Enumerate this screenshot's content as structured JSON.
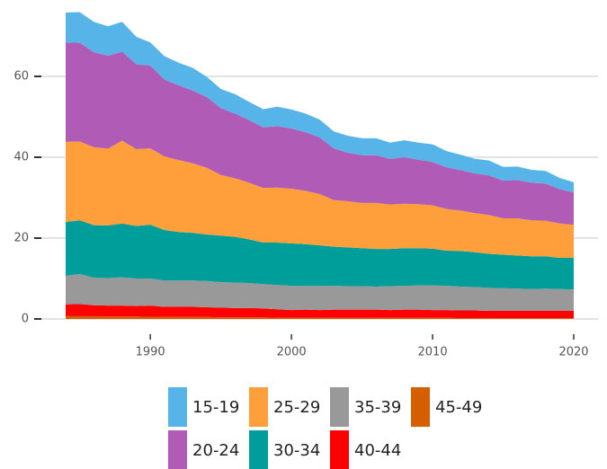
{
  "chart_data": {
    "type": "stacked-area",
    "x": [
      1984,
      1985,
      1986,
      1987,
      1988,
      1989,
      1990,
      1991,
      1992,
      1993,
      1994,
      1995,
      1996,
      1997,
      1998,
      1999,
      2000,
      2001,
      2002,
      2003,
      2004,
      2005,
      2006,
      2007,
      2008,
      2009,
      2010,
      2011,
      2012,
      2013,
      2014,
      2015,
      2016,
      2017,
      2018,
      2019,
      2020
    ],
    "xlim": [
      1984,
      2020
    ],
    "xticks": [
      1990,
      2000,
      2010,
      2020
    ],
    "ylim": [
      0,
      77
    ],
    "yticks": [
      0,
      20,
      40,
      60
    ],
    "grid": true,
    "series": [
      {
        "name": "15-19",
        "color": "#56b4e9",
        "values": [
          7.4,
          7.6,
          7.5,
          7.3,
          7.4,
          6.8,
          5.7,
          5.8,
          5.6,
          5.6,
          5.0,
          4.8,
          4.8,
          4.5,
          4.5,
          4.8,
          4.7,
          4.6,
          4.4,
          4.2,
          4.2,
          4.2,
          4.2,
          4.0,
          4.2,
          4.2,
          4.4,
          4.0,
          3.8,
          3.6,
          3.7,
          3.4,
          3.3,
          3.2,
          3.1,
          2.8,
          2.5
        ]
      },
      {
        "name": "20-24",
        "color": "#b05bb5",
        "values": [
          24.6,
          24.4,
          23.5,
          23.0,
          22.0,
          21.0,
          20.5,
          19.0,
          18.5,
          18.0,
          17.5,
          16.5,
          16.0,
          15.5,
          15.0,
          15.2,
          14.9,
          14.5,
          14.0,
          12.8,
          12.0,
          11.8,
          11.8,
          11.3,
          11.5,
          11.0,
          10.7,
          10.3,
          10.0,
          9.8,
          9.8,
          9.3,
          9.5,
          9.3,
          9.2,
          8.5,
          8.0
        ]
      },
      {
        "name": "25-29",
        "color": "#ff9f3b",
        "values": [
          19.8,
          19.5,
          19.3,
          19.0,
          20.5,
          19.0,
          18.9,
          18.2,
          17.8,
          17.2,
          16.5,
          15.0,
          14.5,
          14.0,
          13.5,
          13.6,
          13.5,
          13.2,
          12.7,
          11.5,
          11.4,
          11.2,
          11.4,
          11.0,
          11.0,
          10.9,
          10.7,
          10.3,
          10.0,
          9.7,
          9.6,
          9.0,
          9.2,
          8.9,
          8.8,
          8.5,
          8.2
        ]
      },
      {
        "name": "30-34",
        "color": "#009e9b",
        "values": [
          13.3,
          13.3,
          13.0,
          13.0,
          13.3,
          13.0,
          13.3,
          12.5,
          12.0,
          11.8,
          11.5,
          11.5,
          11.3,
          10.8,
          10.3,
          10.5,
          10.5,
          10.3,
          10.0,
          9.7,
          9.6,
          9.4,
          9.3,
          9.2,
          9.3,
          9.2,
          9.1,
          8.7,
          8.8,
          8.6,
          8.4,
          8.3,
          8.2,
          8.1,
          8.0,
          7.7,
          7.8
        ]
      },
      {
        "name": "35-39",
        "color": "#999999",
        "values": [
          7.1,
          7.4,
          6.8,
          6.8,
          7.0,
          6.8,
          6.7,
          6.5,
          6.5,
          6.5,
          6.5,
          6.3,
          6.3,
          6.2,
          6.0,
          6.0,
          6.0,
          5.9,
          6.0,
          5.9,
          5.8,
          5.8,
          5.7,
          5.9,
          5.9,
          6.0,
          6.1,
          6.0,
          5.9,
          5.8,
          5.7,
          5.6,
          5.5,
          5.4,
          5.5,
          5.4,
          5.3
        ]
      },
      {
        "name": "40-44",
        "color": "#ff0000",
        "values": [
          2.9,
          3.0,
          2.7,
          2.7,
          2.7,
          2.6,
          2.8,
          2.5,
          2.5,
          2.5,
          2.4,
          2.4,
          2.3,
          2.3,
          2.2,
          2.1,
          1.9,
          2.0,
          1.9,
          2.0,
          2.0,
          2.0,
          2.0,
          1.9,
          2.0,
          2.0,
          1.9,
          1.9,
          1.9,
          1.9,
          1.8,
          1.8,
          1.8,
          1.8,
          1.8,
          1.8,
          1.8
        ]
      },
      {
        "name": "45-49",
        "color": "#d55e00",
        "values": [
          0.7,
          0.7,
          0.7,
          0.6,
          0.6,
          0.6,
          0.5,
          0.5,
          0.5,
          0.5,
          0.5,
          0.4,
          0.4,
          0.4,
          0.4,
          0.3,
          0.3,
          0.3,
          0.3,
          0.3,
          0.3,
          0.3,
          0.3,
          0.3,
          0.3,
          0.3,
          0.3,
          0.3,
          0.2,
          0.2,
          0.2,
          0.2,
          0.2,
          0.2,
          0.2,
          0.2,
          0.2
        ]
      }
    ]
  }
}
